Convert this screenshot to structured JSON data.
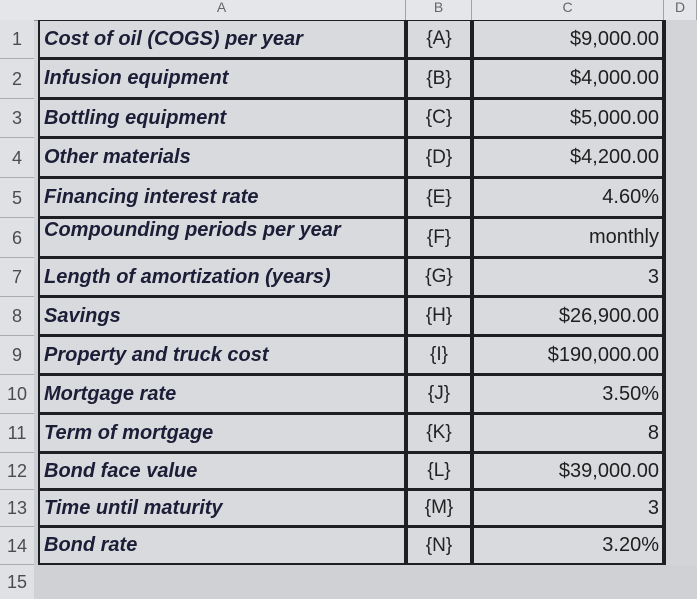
{
  "columns": [
    "A",
    "B",
    "C",
    "D"
  ],
  "rows": [
    {
      "num": "1",
      "label": "Cost of oil (COGS) per year",
      "code": "{A}",
      "value": "$9,000.00"
    },
    {
      "num": "2",
      "label": "Infusion equipment",
      "code": "{B}",
      "value": "$4,000.00"
    },
    {
      "num": "3",
      "label": "Bottling equipment",
      "code": "{C}",
      "value": "$5,000.00"
    },
    {
      "num": "4",
      "label": "Other materials",
      "code": "{D}",
      "value": "$4,200.00"
    },
    {
      "num": "5",
      "label": "Financing interest rate",
      "code": "{E}",
      "value": "4.60%"
    },
    {
      "num": "6",
      "label": "Compounding periods per year",
      "code": "{F}",
      "value": "monthly"
    },
    {
      "num": "7",
      "label": "Length of amortization (years)",
      "code": "{G}",
      "value": "3"
    },
    {
      "num": "8",
      "label": "Savings",
      "code": "{H}",
      "value": "$26,900.00"
    },
    {
      "num": "9",
      "label": "Property and truck cost",
      "code": "{I}",
      "value": "$190,000.00"
    },
    {
      "num": "10",
      "label": "Mortgage rate",
      "code": "{J}",
      "value": "3.50%"
    },
    {
      "num": "11",
      "label": "Term of mortgage",
      "code": "{K}",
      "value": "8"
    },
    {
      "num": "12",
      "label": "Bond face value",
      "code": "{L}",
      "value": "$39,000.00"
    },
    {
      "num": "13",
      "label": "Time until maturity",
      "code": "{M}",
      "value": "3"
    },
    {
      "num": "14",
      "label": "Bond rate",
      "code": "{N}",
      "value": "3.20%"
    }
  ],
  "empty_row": {
    "num": "15"
  }
}
